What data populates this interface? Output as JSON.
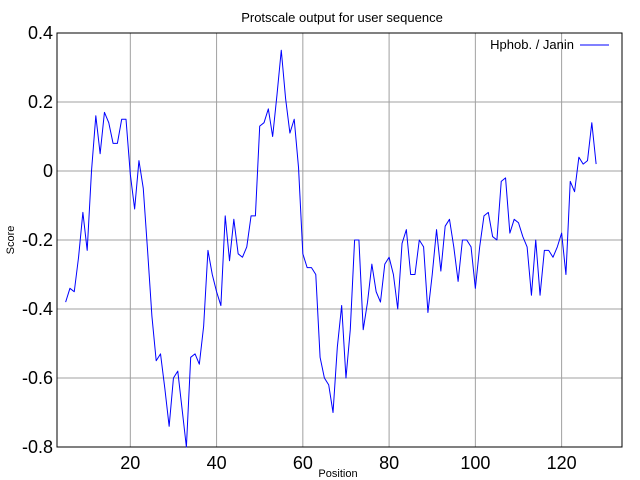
{
  "chart_data": {
    "type": "line",
    "title": "Protscale output for user sequence",
    "xlabel": "Position",
    "ylabel": "Score",
    "xlim": [
      3,
      134
    ],
    "ylim": [
      -0.8,
      0.4
    ],
    "xticks": [
      20,
      40,
      60,
      80,
      100,
      120
    ],
    "yticks": [
      0.4,
      0.2,
      0,
      -0.2,
      -0.4,
      -0.6,
      -0.8
    ],
    "ytick_labels": [
      "0.4",
      "0.2",
      "0",
      "-0.2",
      "-0.4",
      "-0.6",
      "-0.8"
    ],
    "grid": true,
    "legend_position": "top-right",
    "series": [
      {
        "name": "Hphob.  / Janin",
        "color": "#0000ff",
        "x_start": 5,
        "values": [
          -0.38,
          -0.34,
          -0.35,
          -0.25,
          -0.12,
          -0.23,
          0.0,
          0.16,
          0.05,
          0.17,
          0.14,
          0.08,
          0.08,
          0.15,
          0.15,
          -0.01,
          -0.11,
          0.03,
          -0.05,
          -0.23,
          -0.42,
          -0.55,
          -0.53,
          -0.63,
          -0.74,
          -0.6,
          -0.58,
          -0.69,
          -0.8,
          -0.54,
          -0.53,
          -0.56,
          -0.45,
          -0.23,
          -0.3,
          -0.35,
          -0.39,
          -0.13,
          -0.26,
          -0.14,
          -0.24,
          -0.25,
          -0.22,
          -0.13,
          -0.13,
          0.13,
          0.14,
          0.18,
          0.1,
          0.22,
          0.35,
          0.21,
          0.11,
          0.15,
          0.01,
          -0.24,
          -0.28,
          -0.28,
          -0.3,
          -0.54,
          -0.6,
          -0.62,
          -0.7,
          -0.51,
          -0.39,
          -0.6,
          -0.46,
          -0.2,
          -0.2,
          -0.46,
          -0.38,
          -0.27,
          -0.35,
          -0.38,
          -0.27,
          -0.25,
          -0.3,
          -0.4,
          -0.21,
          -0.17,
          -0.3,
          -0.3,
          -0.2,
          -0.22,
          -0.41,
          -0.3,
          -0.17,
          -0.29,
          -0.16,
          -0.14,
          -0.22,
          -0.32,
          -0.2,
          -0.2,
          -0.22,
          -0.34,
          -0.22,
          -0.13,
          -0.12,
          -0.19,
          -0.2,
          -0.03,
          -0.02,
          -0.18,
          -0.14,
          -0.15,
          -0.19,
          -0.22,
          -0.36,
          -0.2,
          -0.36,
          -0.23,
          -0.23,
          -0.25,
          -0.22,
          -0.18,
          -0.3,
          -0.03,
          -0.06,
          0.04,
          0.02,
          0.03,
          0.14,
          0.02
        ]
      }
    ]
  }
}
